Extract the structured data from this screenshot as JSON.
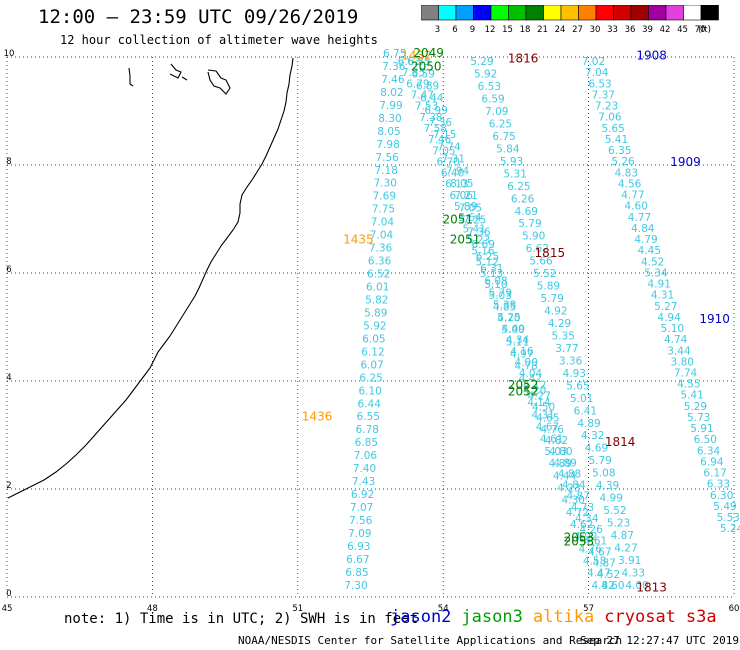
{
  "header": {
    "title": "12:00 — 23:59 UTC 09/26/2019",
    "subtitle": "12 hour collection of altimeter wave heights"
  },
  "legend": {
    "unit": "(ft)",
    "bins": [
      {
        "label": "3",
        "color": "#808080"
      },
      {
        "label": "6",
        "color": "#00ffff"
      },
      {
        "label": "9",
        "color": "#00a0ff"
      },
      {
        "label": "12",
        "color": "#0000ff"
      },
      {
        "label": "15",
        "color": "#00ff00"
      },
      {
        "label": "18",
        "color": "#00c000"
      },
      {
        "label": "21",
        "color": "#008000"
      },
      {
        "label": "24",
        "color": "#ffff00"
      },
      {
        "label": "27",
        "color": "#ffc000"
      },
      {
        "label": "30",
        "color": "#ff8000"
      },
      {
        "label": "33",
        "color": "#ff0000"
      },
      {
        "label": "36",
        "color": "#d00000"
      },
      {
        "label": "39",
        "color": "#a00000"
      },
      {
        "label": "42",
        "color": "#a000a0"
      },
      {
        "label": "45",
        "color": "#e040e0"
      },
      {
        "label": "70",
        "color": "#ffffff"
      },
      {
        "label": "",
        "color": "#000000"
      }
    ]
  },
  "axes": {
    "x_ticks": [
      "45",
      "48",
      "51",
      "54",
      "57",
      "60"
    ],
    "y_ticks": [
      "0",
      "2",
      "4",
      "6",
      "8",
      "10"
    ],
    "xlim": [
      45,
      60
    ],
    "ylim": [
      0,
      10
    ]
  },
  "colors": {
    "track": "#40c8e0",
    "jason2": "#0000cc",
    "jason3": "#008000",
    "altika": "#ff9900",
    "cryosat": "#800000",
    "coast": "#000000"
  },
  "footer": {
    "note": "note: 1) Time is in UTC; 2) SWH is in feet",
    "satellites": [
      {
        "name": "jason2",
        "color": "#0000cc"
      },
      {
        "name": "jason3",
        "color": "#00a000"
      },
      {
        "name": "altika",
        "color": "#ff9900"
      },
      {
        "name": "cryosat",
        "color": "#cc0000"
      },
      {
        "name": "s3a",
        "color": "#cc0000"
      }
    ],
    "credit": "NOAA/NESDIS Center for Satellite Applications and Research",
    "timestamp": "Sep 27 12:27:47 UTC 2019"
  },
  "tracks": [
    {
      "id": "track-a",
      "x0": 52.2,
      "y0": 0.15,
      "x1": 53.0,
      "y1": 10.0,
      "values": [
        "7.30",
        "6.85",
        "6.67",
        "6.93",
        "7.09",
        "7.56",
        "7.07",
        "6.92",
        "7.43",
        "7.40",
        "7.06",
        "6.85",
        "6.78",
        "6.55",
        "6.44",
        "6.10",
        "6.25",
        "6.07",
        "6.12",
        "6.05",
        "5.92",
        "5.89",
        "5.82",
        "6.01",
        "6.52",
        "6.36",
        "7.36",
        "7.04",
        "7.04",
        "7.75",
        "7.69",
        "7.30",
        "7.18",
        "7.56",
        "7.98",
        "8.05",
        "8.30",
        "7.99",
        "8.02",
        "7.46",
        "7.36",
        "6.75"
      ]
    },
    {
      "id": "track-b",
      "x0": 57.5,
      "y0": 0.15,
      "x1": 53.3,
      "y1": 9.85,
      "values": [
        "4.60",
        "4.52",
        "4.87",
        "4.67",
        "4.61",
        "4.26",
        "4.34",
        "4.73",
        "4.87",
        "4.84",
        "4.88",
        "4.89",
        "4.80",
        "4.82",
        "4.76",
        "4.65",
        "4.50",
        "4.27",
        "4.12",
        "4.04",
        "4.00",
        "4.16",
        "4.34",
        "4.49",
        "4.70",
        "4.85",
        "5.03",
        "5.10",
        "5.13",
        "5.12",
        "5.16",
        "5.23",
        "5.41",
        "5.64",
        "5.89",
        "6.06",
        "6.13",
        "6.40",
        "6.70",
        "7.05",
        "7.46",
        "7.58",
        "7.38",
        "7.53",
        "7.47",
        "6.79",
        "7.35",
        "6.63"
      ]
    },
    {
      "id": "track-c",
      "x0": 57.3,
      "y0": 0.15,
      "x1": 53.5,
      "y1": 9.85,
      "values": [
        "4.82",
        "4.47",
        "4.58",
        "4.76",
        "4.92",
        "4.62",
        "4.72",
        "4.30",
        "4.23",
        "4.44",
        "4.89",
        "5.03",
        "4.61",
        "4.67",
        "4.31",
        "4.14",
        "4.20",
        "4.42",
        "4.78",
        "4.97",
        "5.11",
        "5.00",
        "5.25",
        "5.38",
        "5.79",
        "6.08",
        "6.31",
        "6.25",
        "6.69",
        "7.36",
        "7.25",
        "7.05",
        "7.21",
        "8.05",
        "7.94",
        "7.31",
        "7.74",
        "7.15",
        "7.36",
        "6.99",
        "6.44",
        "6.89",
        "6.59",
        "6.35"
      ]
    },
    {
      "id": "track-d",
      "x0": 58.0,
      "y0": 0.15,
      "x1": 54.8,
      "y1": 9.85,
      "values": [
        "4.00",
        "4.33",
        "3.91",
        "4.27",
        "4.87",
        "5.23",
        "5.52",
        "4.99",
        "4.39",
        "5.08",
        "5.79",
        "4.69",
        "4.32",
        "4.89",
        "6.41",
        "5.01",
        "5.65",
        "4.93",
        "3.36",
        "3.77",
        "5.35",
        "4.29",
        "4.92",
        "5.79",
        "5.89",
        "5.52",
        "5.66",
        "6.62",
        "5.90",
        "5.79",
        "4.69",
        "6.26",
        "6.25",
        "5.31",
        "5.93",
        "5.84",
        "6.75",
        "6.25",
        "7.09",
        "6.59",
        "6.53",
        "5.92",
        "5.29"
      ]
    },
    {
      "id": "track-e",
      "x0": 59.95,
      "y0": 1.2,
      "x1": 57.1,
      "y1": 9.85,
      "values": [
        "5.24",
        "5.53",
        "5.49",
        "6.30",
        "6.33",
        "6.17",
        "6.94",
        "6.34",
        "6.50",
        "5.91",
        "5.73",
        "5.29",
        "5.41",
        "4.55",
        "7.74",
        "3.80",
        "3.44",
        "4.74",
        "5.10",
        "4.94",
        "5.27",
        "4.31",
        "4.91",
        "5.34",
        "4.52",
        "4.45",
        "4.79",
        "4.84",
        "4.77",
        "4.60",
        "4.77",
        "4.56",
        "4.83",
        "5.26",
        "6.35",
        "5.41",
        "5.65",
        "7.06",
        "7.23",
        "7.37",
        "6.53",
        "7.04",
        "7.02"
      ]
    }
  ],
  "time_labels": [
    {
      "text": "1435",
      "color": "#ff9900",
      "x": 52.25,
      "y": 6.55
    },
    {
      "text": "1436",
      "color": "#ff9900",
      "x": 51.4,
      "y": 3.27
    },
    {
      "text": "1432",
      "color": "#ff9900",
      "x": 53.45,
      "y": 9.95
    },
    {
      "text": "2049",
      "color": "#008000",
      "x": 53.7,
      "y": 10.0
    },
    {
      "text": "2050",
      "color": "#008000",
      "x": 53.65,
      "y": 9.75
    },
    {
      "text": "2051",
      "color": "#008000",
      "x": 54.3,
      "y": 6.92
    },
    {
      "text": "2051",
      "color": "#008000",
      "x": 54.45,
      "y": 6.55
    },
    {
      "text": "2052",
      "color": "#008000",
      "x": 55.65,
      "y": 3.85
    },
    {
      "text": "2052",
      "color": "#008000",
      "x": 55.65,
      "y": 3.73
    },
    {
      "text": "2053",
      "color": "#008000",
      "x": 56.8,
      "y": 1.03
    },
    {
      "text": "2053",
      "color": "#008000",
      "x": 56.8,
      "y": 0.95
    },
    {
      "text": "1816",
      "color": "#800000",
      "x": 55.65,
      "y": 9.9
    },
    {
      "text": "1815",
      "color": "#800000",
      "x": 56.2,
      "y": 6.3
    },
    {
      "text": "1814",
      "color": "#800000",
      "x": 57.65,
      "y": 2.8
    },
    {
      "text": "1813",
      "color": "#800000",
      "x": 58.3,
      "y": 0.1
    },
    {
      "text": "1908",
      "color": "#0000cc",
      "x": 58.3,
      "y": 9.95
    },
    {
      "text": "1909",
      "color": "#0000cc",
      "x": 59.0,
      "y": 7.98
    },
    {
      "text": "1910",
      "color": "#0000cc",
      "x": 59.6,
      "y": 5.07
    }
  ]
}
